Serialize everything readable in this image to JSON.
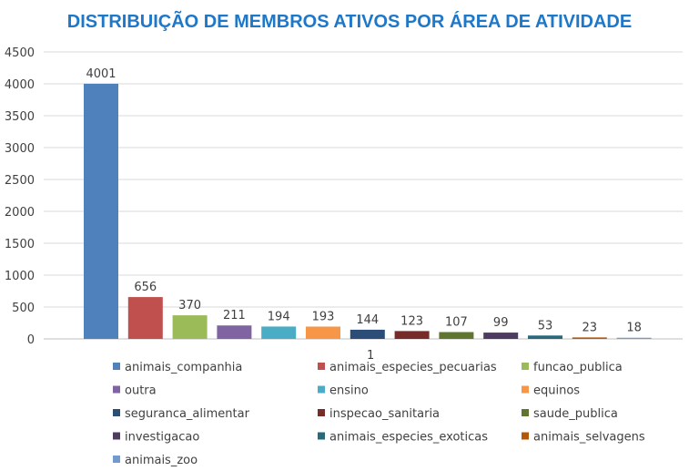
{
  "chart_data": {
    "type": "bar",
    "title": "DISTRIBUIÇÃO DE MEMBROS ATIVOS POR ÁREA DE ATIVIDADE",
    "xlabel": "",
    "ylabel": "",
    "ylim": [
      0,
      4500
    ],
    "yticks": [
      0,
      500,
      1000,
      1500,
      2000,
      2500,
      3000,
      3500,
      4000,
      4500
    ],
    "categories": [
      "1"
    ],
    "grid": true,
    "legend_position": "bottom",
    "series": [
      {
        "name": "animais_companhia",
        "values": [
          4001
        ],
        "color": "#4f81bd"
      },
      {
        "name": "animais_especies_pecuarias",
        "values": [
          656
        ],
        "color": "#c0504d"
      },
      {
        "name": "funcao_publica",
        "values": [
          370
        ],
        "color": "#9bbb59"
      },
      {
        "name": "outra",
        "values": [
          211
        ],
        "color": "#8064a2"
      },
      {
        "name": "ensino",
        "values": [
          194
        ],
        "color": "#4bacc6"
      },
      {
        "name": "equinos",
        "values": [
          193
        ],
        "color": "#f79646"
      },
      {
        "name": "seguranca_alimentar",
        "values": [
          144
        ],
        "color": "#2c4d75"
      },
      {
        "name": "inspecao_sanitaria",
        "values": [
          123
        ],
        "color": "#772c2a"
      },
      {
        "name": "saude_publica",
        "values": [
          107
        ],
        "color": "#5f7530"
      },
      {
        "name": "investigacao",
        "values": [
          99
        ],
        "color": "#4d3b62"
      },
      {
        "name": "animais_especies_exoticas",
        "values": [
          53
        ],
        "color": "#276a7c"
      },
      {
        "name": "animais_selvagens",
        "values": [
          23
        ],
        "color": "#b65708"
      },
      {
        "name": "animais_zoo",
        "values": [
          18
        ],
        "color": "#729aca"
      }
    ]
  }
}
